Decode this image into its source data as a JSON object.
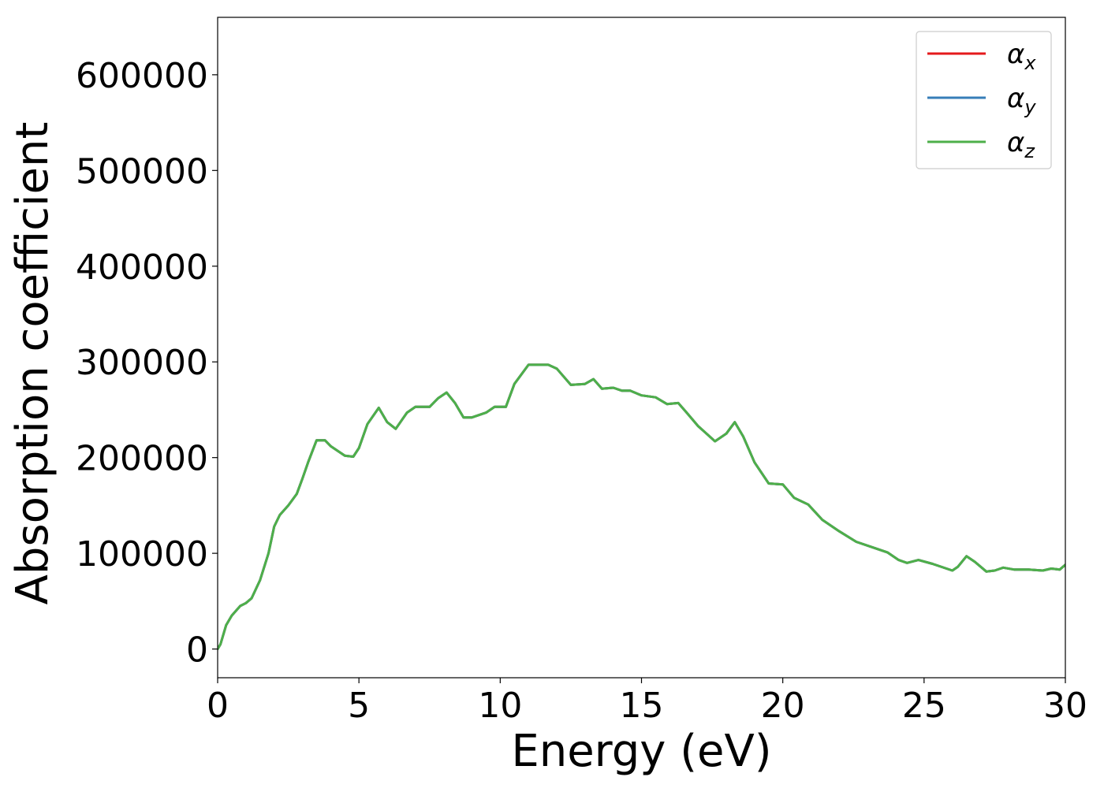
{
  "chart_data": {
    "type": "line",
    "title": "",
    "xlabel": "Energy (eV)",
    "ylabel": "Absorption coefficient",
    "xlim": [
      0,
      30
    ],
    "ylim": [
      -30000,
      660000
    ],
    "xticks": [
      0,
      5,
      10,
      15,
      20,
      25,
      30
    ],
    "xtick_labels": [
      "0",
      "5",
      "10",
      "15",
      "20",
      "25",
      "30"
    ],
    "yticks": [
      0,
      100000,
      200000,
      300000,
      400000,
      500000,
      600000
    ],
    "ytick_labels": [
      "0",
      "100000",
      "200000",
      "300000",
      "400000",
      "500000",
      "600000"
    ],
    "grid": false,
    "legend_position": "top-right",
    "x": [
      0,
      0.1,
      0.3,
      0.5,
      0.8,
      1.0,
      1.2,
      1.5,
      1.8,
      2.0,
      2.2,
      2.5,
      2.8,
      3.0,
      3.2,
      3.5,
      3.8,
      4.0,
      4.5,
      4.8,
      5.0,
      5.3,
      5.7,
      6.0,
      6.3,
      6.7,
      7.0,
      7.5,
      7.8,
      8.1,
      8.4,
      8.7,
      9.0,
      9.5,
      9.8,
      10.2,
      10.5,
      11.0,
      11.2,
      11.7,
      12.0,
      12.5,
      13.0,
      13.3,
      13.6,
      14.0,
      14.3,
      14.6,
      15.0,
      15.5,
      15.9,
      16.3,
      16.6,
      17.0,
      17.6,
      18.0,
      18.3,
      18.6,
      19.0,
      19.5,
      20.0,
      20.4,
      20.9,
      21.4,
      22.0,
      22.6,
      23.2,
      23.7,
      24.1,
      24.4,
      24.8,
      25.3,
      26.0,
      26.2,
      26.5,
      26.8,
      27.2,
      27.5,
      27.8,
      28.2,
      28.7,
      29.2,
      29.5,
      29.8,
      30.0
    ],
    "series": [
      {
        "name": "α_x",
        "color": "#e41a1c",
        "values": [
          0,
          5000,
          25000,
          35000,
          45000,
          48000,
          53000,
          72000,
          100000,
          128000,
          140000,
          150000,
          162000,
          178000,
          195000,
          218000,
          218000,
          212000,
          202000,
          201000,
          210000,
          235000,
          252000,
          237000,
          230000,
          247000,
          253000,
          253000,
          262000,
          268000,
          257000,
          242000,
          242000,
          247000,
          253000,
          253000,
          277000,
          297000,
          297000,
          297000,
          293000,
          276000,
          277000,
          282000,
          272000,
          273000,
          270000,
          270000,
          265000,
          263000,
          256000,
          257000,
          247000,
          233000,
          217000,
          225000,
          237000,
          222000,
          195000,
          173000,
          172000,
          158000,
          151000,
          135000,
          123000,
          112000,
          106000,
          101000,
          93000,
          90000,
          93000,
          89000,
          82000,
          86000,
          97000,
          91000,
          81000,
          82000,
          85000,
          83000,
          83000,
          82000,
          84000,
          83000,
          88000
        ]
      },
      {
        "name": "α_y",
        "color": "#377eb8",
        "values": [
          0,
          5000,
          25000,
          35000,
          45000,
          48000,
          53000,
          72000,
          100000,
          128000,
          140000,
          150000,
          162000,
          178000,
          195000,
          218000,
          218000,
          212000,
          202000,
          201000,
          210000,
          235000,
          252000,
          237000,
          230000,
          247000,
          253000,
          253000,
          262000,
          268000,
          257000,
          242000,
          242000,
          247000,
          253000,
          253000,
          277000,
          297000,
          297000,
          297000,
          293000,
          276000,
          277000,
          282000,
          272000,
          273000,
          270000,
          270000,
          265000,
          263000,
          256000,
          257000,
          247000,
          233000,
          217000,
          225000,
          237000,
          222000,
          195000,
          173000,
          172000,
          158000,
          151000,
          135000,
          123000,
          112000,
          106000,
          101000,
          93000,
          90000,
          93000,
          89000,
          82000,
          86000,
          97000,
          91000,
          81000,
          82000,
          85000,
          83000,
          83000,
          82000,
          84000,
          83000,
          88000
        ]
      },
      {
        "name": "α_z",
        "color": "#4daf4a",
        "values": [
          0,
          5000,
          25000,
          35000,
          45000,
          48000,
          53000,
          72000,
          100000,
          128000,
          140000,
          150000,
          162000,
          178000,
          195000,
          218000,
          218000,
          212000,
          202000,
          201000,
          210000,
          235000,
          252000,
          237000,
          230000,
          247000,
          253000,
          253000,
          262000,
          268000,
          257000,
          242000,
          242000,
          247000,
          253000,
          253000,
          277000,
          297000,
          297000,
          297000,
          293000,
          276000,
          277000,
          282000,
          272000,
          273000,
          270000,
          270000,
          265000,
          263000,
          256000,
          257000,
          247000,
          233000,
          217000,
          225000,
          237000,
          222000,
          195000,
          173000,
          172000,
          158000,
          151000,
          135000,
          123000,
          112000,
          106000,
          101000,
          93000,
          90000,
          93000,
          89000,
          82000,
          86000,
          97000,
          91000,
          81000,
          82000,
          85000,
          83000,
          83000,
          82000,
          84000,
          83000,
          88000
        ]
      }
    ],
    "legend": [
      {
        "symbol": "α",
        "subscript": "x"
      },
      {
        "symbol": "α",
        "subscript": "y"
      },
      {
        "symbol": "α",
        "subscript": "z"
      }
    ]
  }
}
